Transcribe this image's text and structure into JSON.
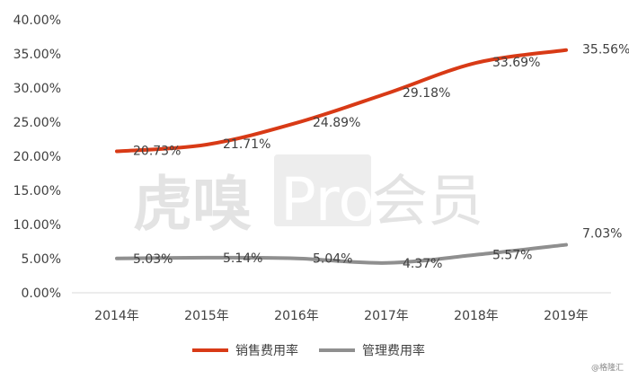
{
  "watermark": {
    "brand_text": "虎嗅",
    "pro_text": "Pro",
    "member_text": "会员",
    "source_credit": "@格隆汇"
  },
  "colors": {
    "sales_line": "#D83A16",
    "admin_line": "#8F8F8F",
    "axis": "#D9D9D9",
    "text": "#404040",
    "watermark": "#E3E3E3"
  },
  "chart_data": {
    "type": "line",
    "categories": [
      "2014年",
      "2015年",
      "2016年",
      "2017年",
      "2018年",
      "2019年"
    ],
    "series": [
      {
        "name": "销售费用率",
        "values": [
          20.73,
          21.71,
          24.89,
          29.18,
          33.69,
          35.56
        ],
        "labels": [
          "20.73%",
          "21.71%",
          "24.89%",
          "29.18%",
          "33.69%",
          "35.56%"
        ]
      },
      {
        "name": "管理费用率",
        "values": [
          5.03,
          5.14,
          5.04,
          4.37,
          5.57,
          7.03
        ],
        "labels": [
          "5.03%",
          "5.14%",
          "5.04%",
          "4.37%",
          "5.57%",
          "7.03%"
        ]
      }
    ],
    "y_ticks": [
      "0.00%",
      "5.00%",
      "10.00%",
      "15.00%",
      "20.00%",
      "25.00%",
      "30.00%",
      "35.00%",
      "40.00%"
    ],
    "ylim": [
      0,
      40
    ],
    "y_step": 5,
    "grid": false,
    "legend": "bottom-center"
  }
}
